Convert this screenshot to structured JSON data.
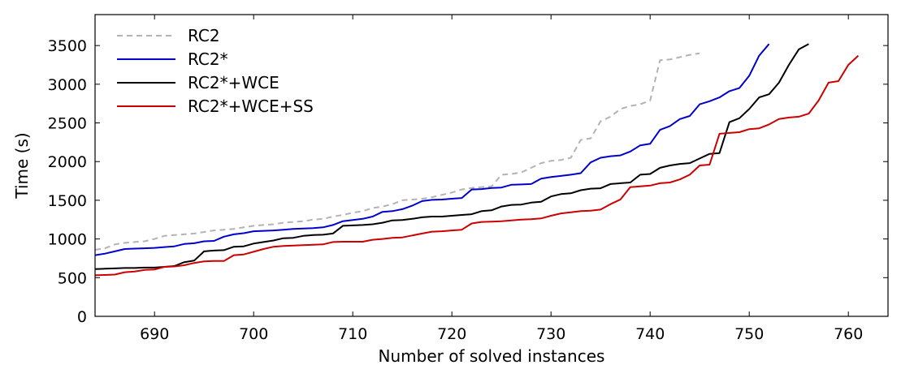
{
  "chart_data": {
    "type": "line",
    "title": "",
    "xlabel": "Number of solved instances",
    "ylabel": "Time (s)",
    "xlim": [
      684,
      764
    ],
    "ylim": [
      0,
      3900
    ],
    "xticks": [
      690,
      700,
      710,
      720,
      730,
      740,
      750,
      760
    ],
    "yticks": [
      0,
      500,
      1000,
      1500,
      2000,
      2500,
      3000,
      3500
    ],
    "grid": false,
    "legend": "top-left",
    "series": [
      {
        "name": "RC2",
        "color": "#b3b3b3",
        "dash": "dashed",
        "points": [
          [
            684,
            860
          ],
          [
            685,
            880
          ],
          [
            686,
            930
          ],
          [
            687,
            950
          ],
          [
            688,
            960
          ],
          [
            689,
            970
          ],
          [
            690,
            1000
          ],
          [
            691,
            1040
          ],
          [
            692,
            1050
          ],
          [
            693,
            1060
          ],
          [
            694,
            1070
          ],
          [
            695,
            1090
          ],
          [
            696,
            1110
          ],
          [
            697,
            1120
          ],
          [
            698,
            1130
          ],
          [
            699,
            1150
          ],
          [
            700,
            1170
          ],
          [
            701,
            1180
          ],
          [
            702,
            1190
          ],
          [
            703,
            1210
          ],
          [
            704,
            1220
          ],
          [
            705,
            1230
          ],
          [
            706,
            1250
          ],
          [
            707,
            1260
          ],
          [
            708,
            1290
          ],
          [
            709,
            1310
          ],
          [
            710,
            1340
          ],
          [
            711,
            1360
          ],
          [
            712,
            1400
          ],
          [
            713,
            1420
          ],
          [
            714,
            1450
          ],
          [
            715,
            1500
          ],
          [
            716,
            1510
          ],
          [
            717,
            1520
          ],
          [
            718,
            1540
          ],
          [
            719,
            1570
          ],
          [
            720,
            1600
          ],
          [
            721,
            1640
          ],
          [
            722,
            1660
          ],
          [
            723,
            1670
          ],
          [
            724,
            1680
          ],
          [
            725,
            1830
          ],
          [
            726,
            1840
          ],
          [
            727,
            1860
          ],
          [
            728,
            1920
          ],
          [
            729,
            1980
          ],
          [
            730,
            2010
          ],
          [
            731,
            2020
          ],
          [
            732,
            2050
          ],
          [
            733,
            2280
          ],
          [
            734,
            2300
          ],
          [
            735,
            2520
          ],
          [
            736,
            2580
          ],
          [
            737,
            2680
          ],
          [
            738,
            2720
          ],
          [
            739,
            2740
          ],
          [
            740,
            2790
          ],
          [
            741,
            3310
          ],
          [
            742,
            3320
          ],
          [
            743,
            3350
          ],
          [
            744,
            3380
          ],
          [
            745,
            3400
          ]
        ]
      },
      {
        "name": "RC2*",
        "color": "#0000cc",
        "dash": "solid",
        "points": [
          [
            684,
            790
          ],
          [
            685,
            810
          ],
          [
            686,
            840
          ],
          [
            687,
            870
          ],
          [
            688,
            875
          ],
          [
            689,
            880
          ],
          [
            690,
            885
          ],
          [
            691,
            895
          ],
          [
            692,
            905
          ],
          [
            693,
            935
          ],
          [
            694,
            945
          ],
          [
            695,
            970
          ],
          [
            696,
            975
          ],
          [
            697,
            1030
          ],
          [
            698,
            1060
          ],
          [
            699,
            1075
          ],
          [
            700,
            1100
          ],
          [
            701,
            1105
          ],
          [
            702,
            1110
          ],
          [
            703,
            1120
          ],
          [
            704,
            1130
          ],
          [
            705,
            1135
          ],
          [
            706,
            1140
          ],
          [
            707,
            1150
          ],
          [
            708,
            1180
          ],
          [
            709,
            1230
          ],
          [
            710,
            1245
          ],
          [
            711,
            1260
          ],
          [
            712,
            1290
          ],
          [
            713,
            1350
          ],
          [
            714,
            1360
          ],
          [
            715,
            1385
          ],
          [
            716,
            1430
          ],
          [
            717,
            1490
          ],
          [
            718,
            1505
          ],
          [
            719,
            1510
          ],
          [
            720,
            1520
          ],
          [
            721,
            1530
          ],
          [
            722,
            1640
          ],
          [
            723,
            1645
          ],
          [
            724,
            1660
          ],
          [
            725,
            1665
          ],
          [
            726,
            1700
          ],
          [
            727,
            1705
          ],
          [
            728,
            1710
          ],
          [
            729,
            1780
          ],
          [
            730,
            1800
          ],
          [
            731,
            1815
          ],
          [
            732,
            1830
          ],
          [
            733,
            1850
          ],
          [
            734,
            1990
          ],
          [
            735,
            2050
          ],
          [
            736,
            2070
          ],
          [
            737,
            2080
          ],
          [
            738,
            2130
          ],
          [
            739,
            2210
          ],
          [
            740,
            2230
          ],
          [
            741,
            2410
          ],
          [
            742,
            2460
          ],
          [
            743,
            2550
          ],
          [
            744,
            2590
          ],
          [
            745,
            2740
          ],
          [
            746,
            2780
          ],
          [
            747,
            2830
          ],
          [
            748,
            2910
          ],
          [
            749,
            2950
          ],
          [
            750,
            3110
          ],
          [
            751,
            3370
          ],
          [
            752,
            3520
          ]
        ]
      },
      {
        "name": "RC2*+WCE",
        "color": "#000000",
        "dash": "solid",
        "points": [
          [
            684,
            610
          ],
          [
            685,
            615
          ],
          [
            686,
            620
          ],
          [
            687,
            625
          ],
          [
            688,
            625
          ],
          [
            689,
            630
          ],
          [
            690,
            630
          ],
          [
            691,
            640
          ],
          [
            692,
            650
          ],
          [
            693,
            700
          ],
          [
            694,
            720
          ],
          [
            695,
            840
          ],
          [
            696,
            850
          ],
          [
            697,
            855
          ],
          [
            698,
            900
          ],
          [
            699,
            905
          ],
          [
            700,
            940
          ],
          [
            701,
            960
          ],
          [
            702,
            980
          ],
          [
            703,
            1010
          ],
          [
            704,
            1015
          ],
          [
            705,
            1040
          ],
          [
            706,
            1050
          ],
          [
            707,
            1055
          ],
          [
            708,
            1070
          ],
          [
            709,
            1170
          ],
          [
            710,
            1175
          ],
          [
            711,
            1180
          ],
          [
            712,
            1190
          ],
          [
            713,
            1210
          ],
          [
            714,
            1240
          ],
          [
            715,
            1245
          ],
          [
            716,
            1260
          ],
          [
            717,
            1280
          ],
          [
            718,
            1290
          ],
          [
            719,
            1290
          ],
          [
            720,
            1300
          ],
          [
            721,
            1310
          ],
          [
            722,
            1320
          ],
          [
            723,
            1360
          ],
          [
            724,
            1370
          ],
          [
            725,
            1420
          ],
          [
            726,
            1440
          ],
          [
            727,
            1445
          ],
          [
            728,
            1470
          ],
          [
            729,
            1480
          ],
          [
            730,
            1550
          ],
          [
            731,
            1580
          ],
          [
            732,
            1590
          ],
          [
            733,
            1630
          ],
          [
            734,
            1650
          ],
          [
            735,
            1655
          ],
          [
            736,
            1710
          ],
          [
            737,
            1720
          ],
          [
            738,
            1730
          ],
          [
            739,
            1830
          ],
          [
            740,
            1840
          ],
          [
            741,
            1920
          ],
          [
            742,
            1950
          ],
          [
            743,
            1970
          ],
          [
            744,
            1980
          ],
          [
            745,
            2040
          ],
          [
            746,
            2100
          ],
          [
            747,
            2110
          ],
          [
            748,
            2510
          ],
          [
            749,
            2560
          ],
          [
            750,
            2680
          ],
          [
            751,
            2830
          ],
          [
            752,
            2870
          ],
          [
            753,
            3020
          ],
          [
            754,
            3250
          ],
          [
            755,
            3450
          ],
          [
            756,
            3520
          ]
        ]
      },
      {
        "name": "RC2*+WCE+SS",
        "color": "#cc0000",
        "dash": "solid",
        "points": [
          [
            684,
            530
          ],
          [
            685,
            535
          ],
          [
            686,
            540
          ],
          [
            687,
            570
          ],
          [
            688,
            580
          ],
          [
            689,
            600
          ],
          [
            690,
            605
          ],
          [
            691,
            640
          ],
          [
            692,
            645
          ],
          [
            693,
            660
          ],
          [
            694,
            690
          ],
          [
            695,
            710
          ],
          [
            696,
            715
          ],
          [
            697,
            715
          ],
          [
            698,
            790
          ],
          [
            699,
            800
          ],
          [
            700,
            835
          ],
          [
            701,
            870
          ],
          [
            702,
            900
          ],
          [
            703,
            910
          ],
          [
            704,
            915
          ],
          [
            705,
            920
          ],
          [
            706,
            925
          ],
          [
            707,
            930
          ],
          [
            708,
            960
          ],
          [
            709,
            965
          ],
          [
            710,
            965
          ],
          [
            711,
            965
          ],
          [
            712,
            990
          ],
          [
            713,
            1000
          ],
          [
            714,
            1015
          ],
          [
            715,
            1020
          ],
          [
            716,
            1045
          ],
          [
            717,
            1070
          ],
          [
            718,
            1095
          ],
          [
            719,
            1100
          ],
          [
            720,
            1110
          ],
          [
            721,
            1120
          ],
          [
            722,
            1200
          ],
          [
            723,
            1220
          ],
          [
            724,
            1225
          ],
          [
            725,
            1230
          ],
          [
            726,
            1240
          ],
          [
            727,
            1250
          ],
          [
            728,
            1255
          ],
          [
            729,
            1265
          ],
          [
            730,
            1300
          ],
          [
            731,
            1330
          ],
          [
            732,
            1345
          ],
          [
            733,
            1360
          ],
          [
            734,
            1365
          ],
          [
            735,
            1380
          ],
          [
            736,
            1450
          ],
          [
            737,
            1510
          ],
          [
            738,
            1670
          ],
          [
            739,
            1680
          ],
          [
            740,
            1690
          ],
          [
            741,
            1720
          ],
          [
            742,
            1730
          ],
          [
            743,
            1770
          ],
          [
            744,
            1830
          ],
          [
            745,
            1950
          ],
          [
            746,
            1960
          ],
          [
            747,
            2360
          ],
          [
            748,
            2370
          ],
          [
            749,
            2380
          ],
          [
            750,
            2420
          ],
          [
            751,
            2430
          ],
          [
            752,
            2480
          ],
          [
            753,
            2550
          ],
          [
            754,
            2570
          ],
          [
            755,
            2580
          ],
          [
            756,
            2620
          ],
          [
            757,
            2790
          ],
          [
            758,
            3020
          ],
          [
            759,
            3040
          ],
          [
            760,
            3250
          ],
          [
            761,
            3370
          ]
        ]
      }
    ]
  }
}
